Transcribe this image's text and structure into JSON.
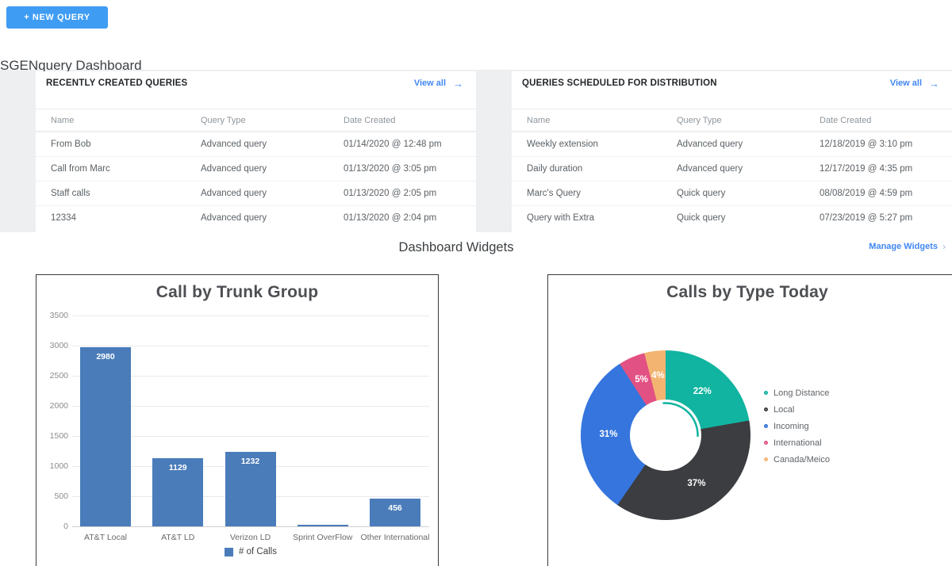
{
  "header": {
    "new_query_button": "+ NEW QUERY",
    "page_title": "SGENquery Dashboard"
  },
  "icons": {
    "view_all_arrow": "→",
    "manage_arrow": "›"
  },
  "recent_queries": {
    "title": "RECENTLY CREATED QUERIES",
    "view_all": "View all",
    "columns": [
      "Name",
      "Query Type",
      "Date Created"
    ],
    "rows": [
      {
        "name": "From Bob",
        "type": "Advanced query",
        "date": "01/14/2020 @ 12:48 pm"
      },
      {
        "name": "Call from Marc",
        "type": "Advanced query",
        "date": "01/13/2020 @ 3:05 pm"
      },
      {
        "name": "Staff calls",
        "type": "Advanced query",
        "date": "01/13/2020 @ 2:05 pm"
      },
      {
        "name": "12334",
        "type": "Advanced query",
        "date": "01/13/2020 @ 2:04 pm"
      }
    ]
  },
  "scheduled_queries": {
    "title": "QUERIES SCHEDULED FOR DISTRIBUTION",
    "view_all": "View all",
    "columns": [
      "Name",
      "Query Type",
      "Date Created"
    ],
    "rows": [
      {
        "name": "Weekly extension",
        "type": "Advanced query",
        "date": "12/18/2019 @ 3:10 pm"
      },
      {
        "name": "Daily duration",
        "type": "Advanced query",
        "date": "12/17/2019 @ 4:35 pm"
      },
      {
        "name": "Marc's Query",
        "type": "Quick query",
        "date": "08/08/2019 @ 4:59 pm"
      },
      {
        "name": "Query with Extra",
        "type": "Quick query",
        "date": "07/23/2019 @ 5:27 pm"
      }
    ]
  },
  "widgets_bar": {
    "title": "Dashboard Widgets",
    "manage_label": "Manage Widgets"
  },
  "chart_data": [
    {
      "type": "bar",
      "title": "Call by Trunk Group",
      "categories": [
        "AT&T Local",
        "AT&T LD",
        "Verizon LD",
        "Sprint OverFlow",
        "Other International"
      ],
      "values": [
        2980,
        1129,
        1232,
        15,
        456
      ],
      "bar_labels": [
        "2980",
        "1129",
        "1232",
        "",
        "456"
      ],
      "yticks": [
        3500,
        3000,
        2500,
        2000,
        1500,
        1000,
        500,
        0
      ],
      "ylim": [
        0,
        3500
      ],
      "xlabel": "",
      "ylabel": "",
      "legend": "# of Calls",
      "legend_position": "bottom",
      "grid": true,
      "bar_color": "#4a7cba"
    },
    {
      "type": "pie",
      "donut": true,
      "title": "Calls by Type Today",
      "labels": [
        "Long Distance",
        "Local",
        "Incoming",
        "International",
        "Canada/Meico"
      ],
      "values": [
        22,
        37,
        31,
        5,
        4
      ],
      "percent_labels": [
        "22%",
        "37%",
        "31%",
        "5%",
        "4%"
      ],
      "colors": [
        "#10b4a0",
        "#3b3d40",
        "#3575dd",
        "#e25183",
        "#f3b471"
      ],
      "legend_position": "right",
      "start_angle_deg": 0,
      "direction": "clockwise"
    }
  ]
}
